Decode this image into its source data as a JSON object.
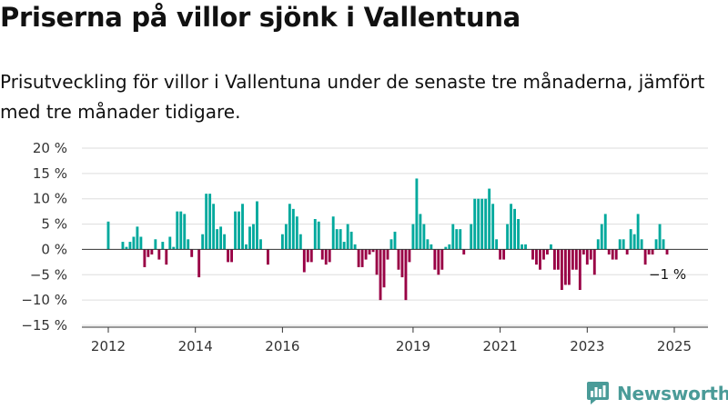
{
  "title": "Priserna på villor sjönk i Vallentuna",
  "subtitle": "Prisutveckling för villor i Vallentuna under de senaste tre månaderna, jämfört med tre månader tidigare.",
  "logo": {
    "text": "Newsworthy",
    "icon": "bar-chart-logo-icon",
    "color": "#4a9b98"
  },
  "colors": {
    "positive": "#00a99d",
    "negative": "#990045",
    "grid": "#dddddd",
    "zero_line": "#333333"
  },
  "chart_data": {
    "type": "bar",
    "title": "Priserna på villor sjönk i Vallentuna",
    "subtitle": "Prisutveckling för villor i Vallentuna under de senaste tre månaderna, jämfört med tre månader tidigare.",
    "xlabel": "",
    "ylabel": "",
    "ylim": [
      -15,
      20
    ],
    "y_ticks": [
      20,
      15,
      10,
      5,
      0,
      -5,
      -10,
      -15
    ],
    "y_tick_labels": [
      "20 %",
      "15 %",
      "10 %",
      "5 %",
      "0 %",
      "−5 %",
      "−10 %",
      "−15 %"
    ],
    "x_ticks": [
      {
        "label": "2012",
        "month": "2012-01"
      },
      {
        "label": "2014",
        "month": "2014-01"
      },
      {
        "label": "2016",
        "month": "2016-01"
      },
      {
        "label": "2019",
        "month": "2019-01"
      },
      {
        "label": "2021",
        "month": "2021-01"
      },
      {
        "label": "2023",
        "month": "2023-01"
      },
      {
        "label": "2025",
        "month": "2025-01"
      }
    ],
    "grid": true,
    "start_month": "2012-01",
    "annotation": {
      "text": "−1 %",
      "month": "2025-01"
    },
    "values": [
      5.5,
      0,
      0,
      0,
      1.5,
      0.5,
      1.5,
      2.5,
      4.5,
      2.5,
      -3.5,
      -1.5,
      -1,
      2,
      -2,
      1.5,
      -3,
      2.5,
      0.5,
      7.5,
      7.5,
      7,
      2,
      -1.5,
      0,
      -5.5,
      3,
      11,
      11,
      9,
      4,
      4.5,
      3,
      -2.5,
      -2.5,
      7.5,
      7.5,
      9,
      1,
      4.5,
      5,
      9.5,
      2,
      0,
      -3,
      0,
      0,
      0,
      3,
      5,
      9,
      8,
      6.5,
      3,
      -4.5,
      -2.5,
      -2.5,
      6,
      5.5,
      -2,
      -3,
      -2.5,
      6.5,
      4,
      4,
      1.5,
      5,
      3.5,
      1,
      -3.5,
      -3.5,
      -2,
      -1,
      -0.5,
      -5,
      -10,
      -7.5,
      -2,
      2,
      3.5,
      -4,
      -5.5,
      -10,
      -2.5,
      5,
      14,
      7,
      5,
      2,
      1,
      -4,
      -5,
      -4,
      0.5,
      1,
      5,
      4,
      4,
      -1,
      0,
      5,
      10,
      10,
      10,
      10,
      12,
      9,
      2,
      -2,
      -2,
      5,
      9,
      8,
      6,
      1,
      1,
      0,
      -2,
      -3,
      -4,
      -2,
      -1,
      1,
      -4,
      -4,
      -8,
      -7,
      -7,
      -4,
      -4,
      -8,
      -1,
      -3,
      -2,
      -5,
      2,
      5,
      7,
      -1,
      -2,
      -2,
      2,
      2,
      -1,
      4,
      3,
      7,
      2,
      -3,
      -1,
      -1,
      2,
      5,
      2,
      -1
    ]
  }
}
